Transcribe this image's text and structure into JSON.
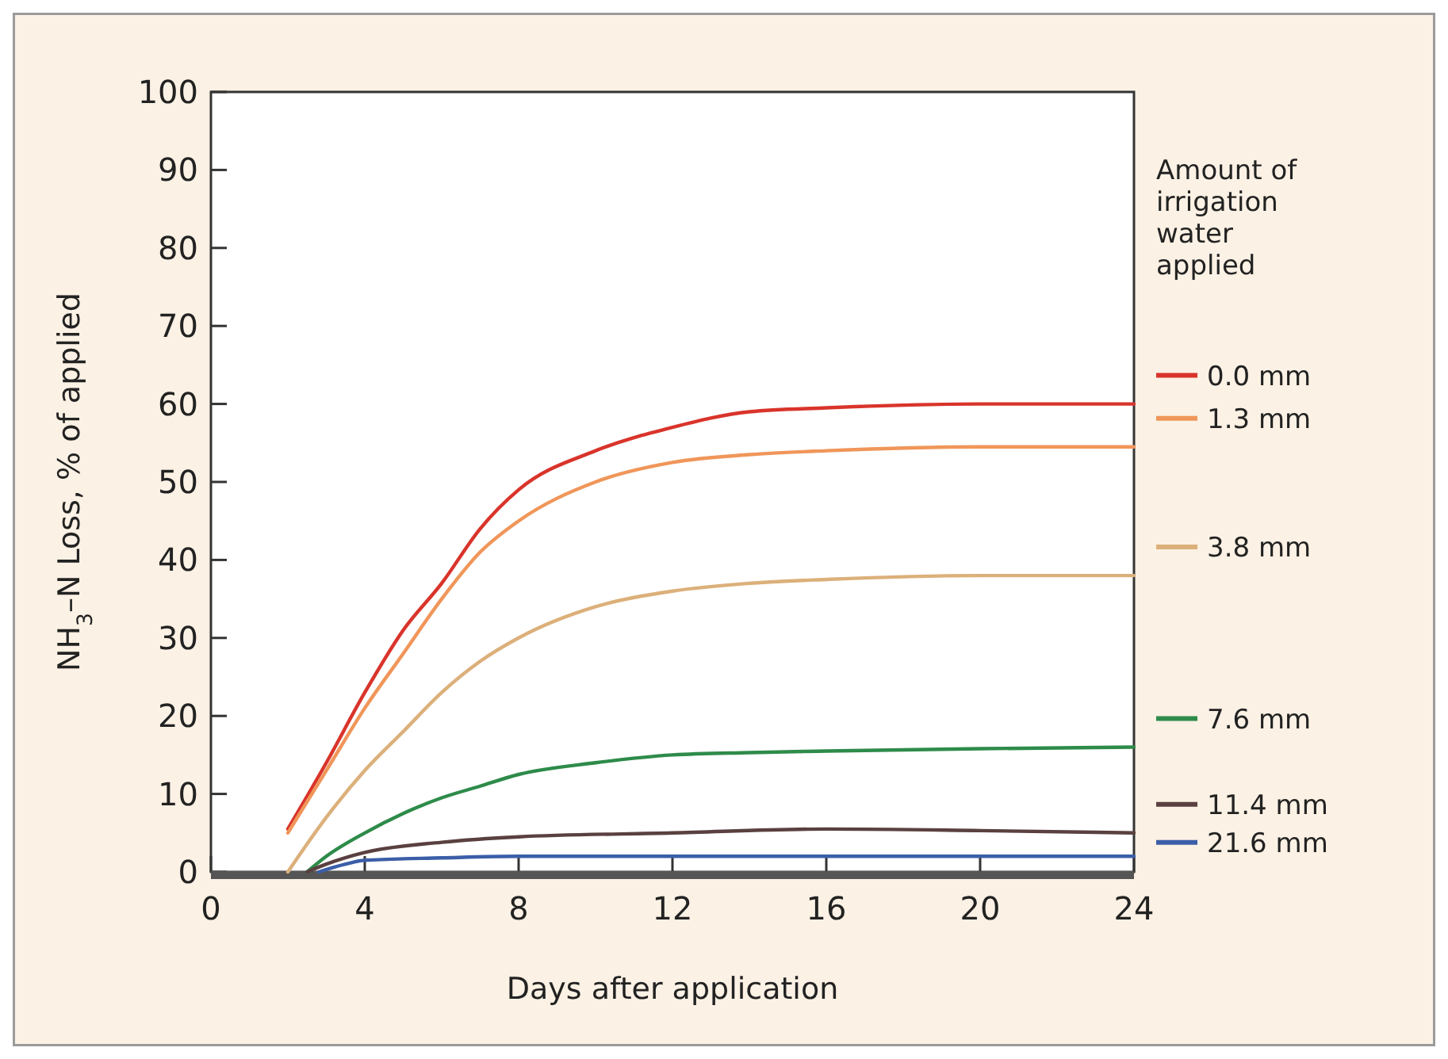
{
  "chart_data": {
    "type": "line",
    "xlabel": "Days after application",
    "ylabel": "NH$_{3}$–N Loss, % of applied",
    "legend_title": "Amount of irrigation water applied",
    "legend": "right",
    "grid": false,
    "line_style": "solid",
    "xlim": [
      0,
      24
    ],
    "xticks": [
      0,
      4,
      8,
      12,
      16,
      20,
      24
    ],
    "ylim": [
      0,
      100
    ],
    "yticks": [
      0,
      10,
      20,
      30,
      40,
      50,
      60,
      70,
      80,
      90,
      100
    ],
    "series": [
      {
        "name": "0.0 mm",
        "color": "#d9342b",
        "x": [
          2,
          3,
          4,
          5,
          6,
          7,
          8,
          10,
          12,
          14,
          16,
          20,
          24
        ],
        "values": [
          5.5,
          14,
          23,
          31,
          37,
          44,
          49,
          54,
          57,
          59,
          59.5,
          60,
          60
        ]
      },
      {
        "name": "1.3 mm",
        "color": "#f0965a",
        "x": [
          2,
          3,
          4,
          5,
          6,
          7,
          8,
          10,
          12,
          14,
          16,
          20,
          24
        ],
        "values": [
          5,
          13,
          21,
          28,
          35,
          41,
          45,
          50,
          52.5,
          53.5,
          54,
          54.5,
          54.5
        ]
      },
      {
        "name": "3.8 mm",
        "color": "#dcb07a",
        "x": [
          2,
          3,
          4,
          5,
          6,
          7,
          8,
          10,
          12,
          14,
          16,
          20,
          24
        ],
        "values": [
          0,
          7,
          13,
          18,
          23,
          27,
          30,
          34,
          36,
          37,
          37.5,
          38,
          38
        ]
      },
      {
        "name": "7.6 mm",
        "color": "#2e8b4a",
        "x": [
          2.5,
          3,
          4,
          5,
          6,
          7,
          8,
          10,
          12,
          14,
          16,
          20,
          24
        ],
        "values": [
          0,
          2,
          5,
          7.5,
          9.5,
          11,
          12.5,
          14,
          15,
          15.3,
          15.5,
          15.8,
          16
        ]
      },
      {
        "name": "11.4 mm",
        "color": "#5a4040",
        "x": [
          2.5,
          3,
          4,
          6,
          8,
          12,
          16,
          20,
          24
        ],
        "values": [
          0,
          1,
          2.5,
          3.8,
          4.5,
          5,
          5.5,
          5.3,
          5
        ]
      },
      {
        "name": "21.6 mm",
        "color": "#3b5ea8",
        "x": [
          2.8,
          3.5,
          4,
          6,
          8,
          12,
          16,
          20,
          24
        ],
        "values": [
          0,
          1,
          1.5,
          1.8,
          2,
          2,
          2,
          2,
          2
        ]
      }
    ]
  }
}
